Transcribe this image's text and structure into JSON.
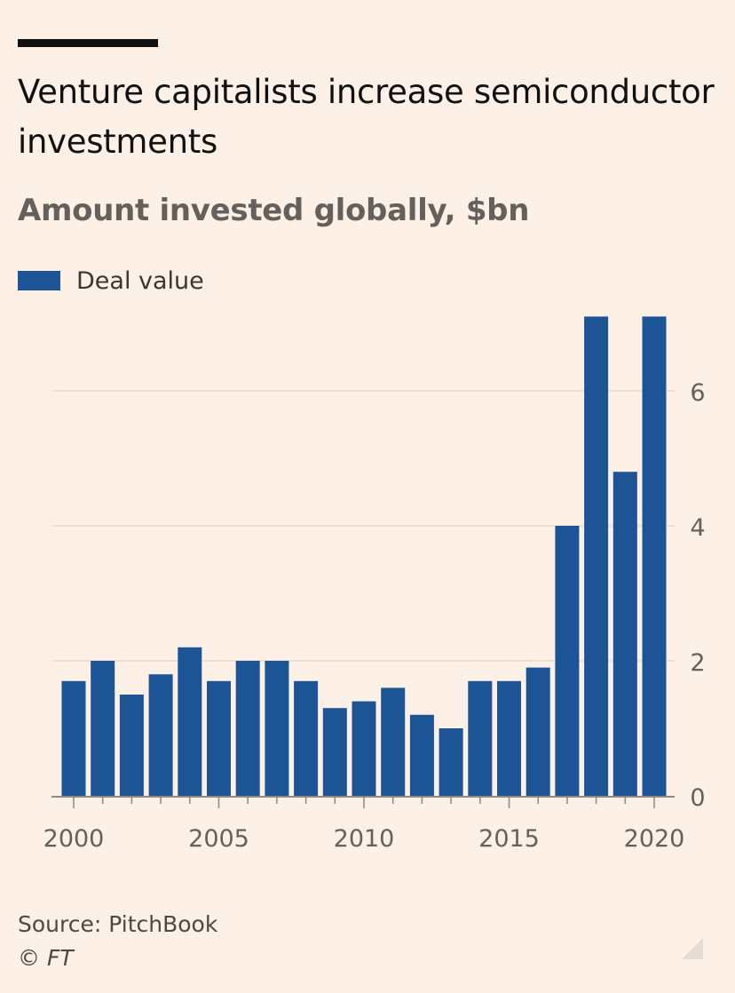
{
  "header": {
    "title": "Venture capitalists increase semiconductor investments",
    "subtitle": "Amount invested globally, $bn"
  },
  "legend": {
    "label": "Deal value"
  },
  "footer": {
    "source": "Source: PitchBook",
    "copyright": "© FT"
  },
  "colors": {
    "background": "#fcf0e7",
    "bar": "#1d5496",
    "grid": "#efdfd3",
    "axis_text": "#66605c"
  },
  "icons": [
    "resize-grip-icon"
  ],
  "chart_data": {
    "type": "bar",
    "title": "Venture capitalists increase semiconductor investments",
    "subtitle": "Amount invested globally, $bn",
    "xlabel": "",
    "ylabel": "",
    "legend": [
      "Deal value"
    ],
    "legend_position": "top-left",
    "y_axis_side": "right",
    "grid": true,
    "ylim": [
      0,
      7
    ],
    "yticks": [
      0,
      2,
      4,
      6
    ],
    "x": [
      2000,
      2001,
      2002,
      2003,
      2004,
      2005,
      2006,
      2007,
      2008,
      2009,
      2010,
      2011,
      2012,
      2013,
      2014,
      2015,
      2016,
      2017,
      2018,
      2019,
      2020
    ],
    "xticks": [
      2000,
      2005,
      2010,
      2015,
      2020
    ],
    "series": [
      {
        "name": "Deal value",
        "values": [
          1.7,
          2.0,
          1.5,
          1.8,
          2.2,
          1.7,
          2.0,
          2.0,
          1.7,
          1.3,
          1.4,
          1.6,
          1.2,
          1.0,
          1.7,
          1.7,
          1.9,
          4.0,
          7.1,
          4.8,
          7.1
        ]
      }
    ]
  }
}
